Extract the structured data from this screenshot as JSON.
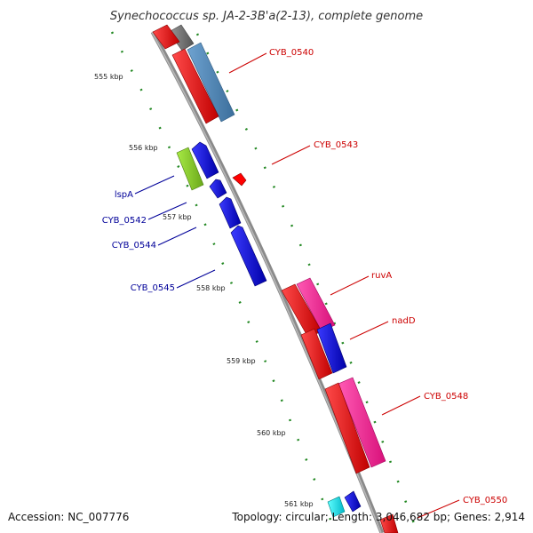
{
  "title": "Synechococcus sp. JA-2-3B'a(2-13), complete genome",
  "footer": {
    "accession": "Accession: NC_007776",
    "summary": "Topology: circular; Length: 3,046,682 bp; Genes: 2,914"
  },
  "ticks": [
    "555 kbp",
    "556 kbp",
    "557 kbp",
    "558 kbp",
    "559 kbp",
    "560 kbp",
    "561 kbp"
  ],
  "labels": {
    "cyb_0540": "CYB_0540",
    "cyb_0543": "CYB_0543",
    "ruva": "ruvA",
    "nadd": "nadD",
    "cyb_0548": "CYB_0548",
    "cyb_0550": "CYB_0550",
    "lspa": "lspA",
    "cyb_0542": "CYB_0542",
    "cyb_0544": "CYB_0544",
    "cyb_0545": "CYB_0545"
  },
  "colors": {
    "forward_label": "#cc0000",
    "reverse_label": "#000099",
    "backbone": "#888888",
    "tick_dots": "#228822",
    "cds_red": "#ff0000",
    "cds_blue": "#0000ee",
    "cds_steel": "#4f86b8",
    "cds_magenta": "#ff2a9a",
    "cds_green": "#8ed62a",
    "cds_gray": "#777777",
    "cds_cyan": "#00e0e0"
  }
}
